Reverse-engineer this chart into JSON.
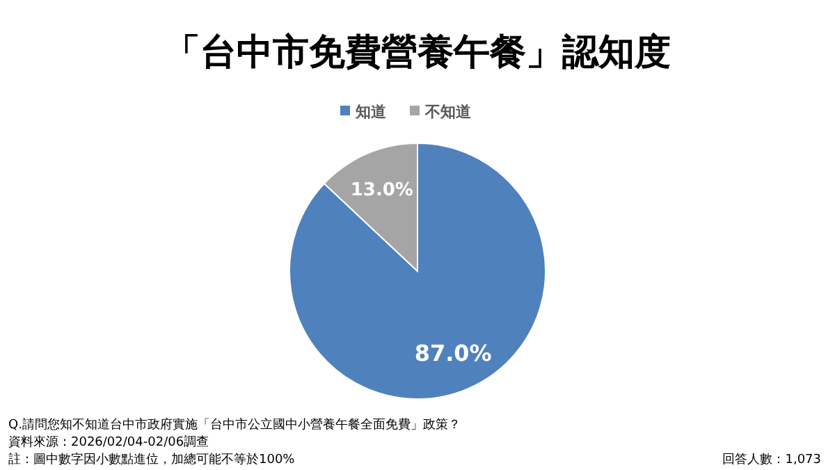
{
  "chart_data": {
    "type": "pie",
    "title": "「台中市免費營養午餐」認知度",
    "categories": [
      "知道",
      "不知道"
    ],
    "values": [
      87.0,
      13.0
    ],
    "colors": [
      "#4f81bd",
      "#a5a5a5"
    ],
    "value_labels": [
      "87.0%",
      "13.0%"
    ],
    "legend": "top",
    "annotations": [
      "Q.請問您知不知道台中市政府實施「台中市公立國中小營養午餐全面免費」政策？",
      "資料來源：2026/02/04-02/06調查",
      "註：圖中數字因小數點進位，加總可能不等於100%",
      "回答人數：1,073"
    ]
  }
}
